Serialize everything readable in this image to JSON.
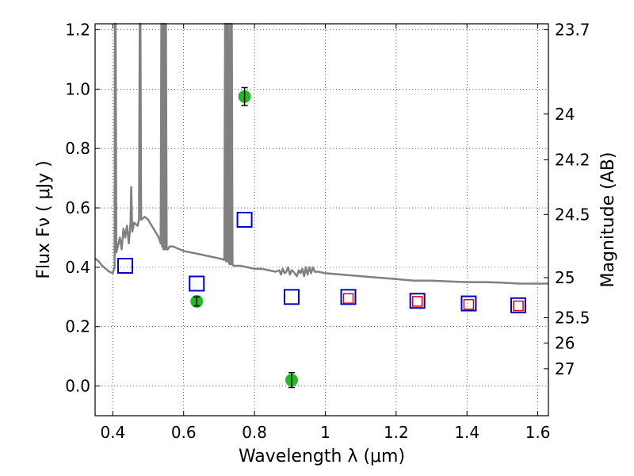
{
  "chart_data": {
    "type": "scatter",
    "xlabel": "Wavelength  λ (μm)",
    "ylabel": "Flux  Fν  ( μJy )",
    "y2label": "Magnitude (AB)",
    "xlim": [
      0.35,
      1.63
    ],
    "ylim": [
      -0.1,
      1.22
    ],
    "grid": true,
    "x_ticks": [
      0.4,
      0.6,
      0.8,
      1.0,
      1.2,
      1.4,
      1.6
    ],
    "x_tick_labels": [
      "0.4",
      "0.6",
      "0.8",
      "1",
      "1.2",
      "1.4",
      "1.6"
    ],
    "y_ticks": [
      0.0,
      0.2,
      0.4,
      0.6,
      0.8,
      1.0,
      1.2
    ],
    "y_tick_labels": [
      "0.0",
      "0.2",
      "0.4",
      "0.6",
      "0.8",
      "1.0",
      "1.2"
    ],
    "y2_ticks": [
      {
        "label": "23.7",
        "flux": 1.2
      },
      {
        "label": "24",
        "flux": 0.916
      },
      {
        "label": "24.2",
        "flux": 0.762
      },
      {
        "label": "24.5",
        "flux": 0.578
      },
      {
        "label": "25",
        "flux": 0.365
      },
      {
        "label": "25.5",
        "flux": 0.23
      },
      {
        "label": "26",
        "flux": 0.145
      },
      {
        "label": "27",
        "flux": 0.058
      }
    ],
    "series": [
      {
        "kind": "line",
        "color": "#808080",
        "points": [
          [
            0.35,
            0.43
          ],
          [
            0.36,
            0.42
          ],
          [
            0.37,
            0.405
          ],
          [
            0.38,
            0.395
          ],
          [
            0.39,
            0.385
          ],
          [
            0.4,
            0.38
          ],
          [
            0.405,
            0.4
          ],
          [
            0.406,
            1.22
          ],
          [
            0.408,
            1.22
          ],
          [
            0.41,
            0.45
          ],
          [
            0.42,
            0.5
          ],
          [
            0.425,
            0.46
          ],
          [
            0.43,
            0.53
          ],
          [
            0.435,
            0.5
          ],
          [
            0.44,
            0.54
          ],
          [
            0.445,
            0.48
          ],
          [
            0.45,
            0.55
          ],
          [
            0.452,
            0.67
          ],
          [
            0.455,
            0.52
          ],
          [
            0.46,
            0.55
          ],
          [
            0.47,
            0.54
          ],
          [
            0.474,
            0.56
          ],
          [
            0.476,
            1.22
          ],
          [
            0.478,
            1.22
          ],
          [
            0.48,
            0.56
          ],
          [
            0.49,
            0.57
          ],
          [
            0.5,
            0.56
          ],
          [
            0.51,
            0.54
          ],
          [
            0.52,
            0.52
          ],
          [
            0.53,
            0.5
          ],
          [
            0.535,
            0.48
          ],
          [
            0.537,
            1.22
          ],
          [
            0.539,
            0.47
          ],
          [
            0.541,
            1.22
          ],
          [
            0.543,
            0.46
          ],
          [
            0.545,
            1.22
          ],
          [
            0.547,
            0.46
          ],
          [
            0.55,
            1.22
          ],
          [
            0.552,
            0.46
          ],
          [
            0.555,
            0.46
          ],
          [
            0.56,
            0.47
          ],
          [
            0.57,
            0.47
          ],
          [
            0.58,
            0.465
          ],
          [
            0.6,
            0.455
          ],
          [
            0.62,
            0.45
          ],
          [
            0.64,
            0.445
          ],
          [
            0.66,
            0.44
          ],
          [
            0.68,
            0.435
          ],
          [
            0.7,
            0.43
          ],
          [
            0.715,
            0.425
          ],
          [
            0.717,
            1.22
          ],
          [
            0.72,
            0.42
          ],
          [
            0.722,
            1.22
          ],
          [
            0.724,
            0.42
          ],
          [
            0.726,
            1.22
          ],
          [
            0.728,
            0.415
          ],
          [
            0.73,
            0.41
          ],
          [
            0.732,
            1.22
          ],
          [
            0.734,
            0.41
          ],
          [
            0.736,
            1.22
          ],
          [
            0.738,
            0.41
          ],
          [
            0.74,
            0.405
          ],
          [
            0.76,
            0.405
          ],
          [
            0.78,
            0.4
          ],
          [
            0.8,
            0.395
          ],
          [
            0.82,
            0.395
          ],
          [
            0.84,
            0.39
          ],
          [
            0.86,
            0.385
          ],
          [
            0.87,
            0.39
          ],
          [
            0.875,
            0.375
          ],
          [
            0.88,
            0.395
          ],
          [
            0.885,
            0.38
          ],
          [
            0.89,
            0.385
          ],
          [
            0.895,
            0.4
          ],
          [
            0.9,
            0.375
          ],
          [
            0.905,
            0.39
          ],
          [
            0.91,
            0.385
          ],
          [
            0.92,
            0.37
          ],
          [
            0.925,
            0.39
          ],
          [
            0.93,
            0.38
          ],
          [
            0.935,
            0.395
          ],
          [
            0.94,
            0.37
          ],
          [
            0.945,
            0.4
          ],
          [
            0.95,
            0.375
          ],
          [
            0.955,
            0.4
          ],
          [
            0.96,
            0.38
          ],
          [
            0.965,
            0.4
          ],
          [
            0.97,
            0.385
          ],
          [
            0.98,
            0.385
          ],
          [
            1.0,
            0.38
          ],
          [
            1.05,
            0.375
          ],
          [
            1.1,
            0.37
          ],
          [
            1.15,
            0.365
          ],
          [
            1.2,
            0.36
          ],
          [
            1.25,
            0.355
          ],
          [
            1.3,
            0.355
          ],
          [
            1.35,
            0.352
          ],
          [
            1.4,
            0.35
          ],
          [
            1.45,
            0.35
          ],
          [
            1.5,
            0.348
          ],
          [
            1.55,
            0.345
          ],
          [
            1.6,
            0.345
          ],
          [
            1.63,
            0.345
          ]
        ]
      },
      {
        "kind": "squares",
        "color": "#0000cc",
        "points": [
          [
            0.435,
            0.405
          ],
          [
            0.637,
            0.345
          ],
          [
            0.772,
            0.56
          ],
          [
            0.905,
            0.3
          ],
          [
            1.065,
            0.3
          ],
          [
            1.26,
            0.287
          ],
          [
            1.405,
            0.278
          ],
          [
            1.545,
            0.272
          ]
        ]
      },
      {
        "kind": "squares-small",
        "color": "#e00000",
        "points": [
          [
            1.065,
            0.295
          ],
          [
            1.26,
            0.285
          ],
          [
            1.405,
            0.275
          ],
          [
            1.545,
            0.27
          ]
        ]
      },
      {
        "kind": "errorbar-points",
        "color": "#22bb22",
        "points": [
          {
            "x": 0.637,
            "y": 0.285,
            "err": 0.015
          },
          {
            "x": 0.772,
            "y": 0.975,
            "err": 0.03
          },
          {
            "x": 0.905,
            "y": 0.02,
            "err": 0.025
          }
        ]
      }
    ]
  }
}
